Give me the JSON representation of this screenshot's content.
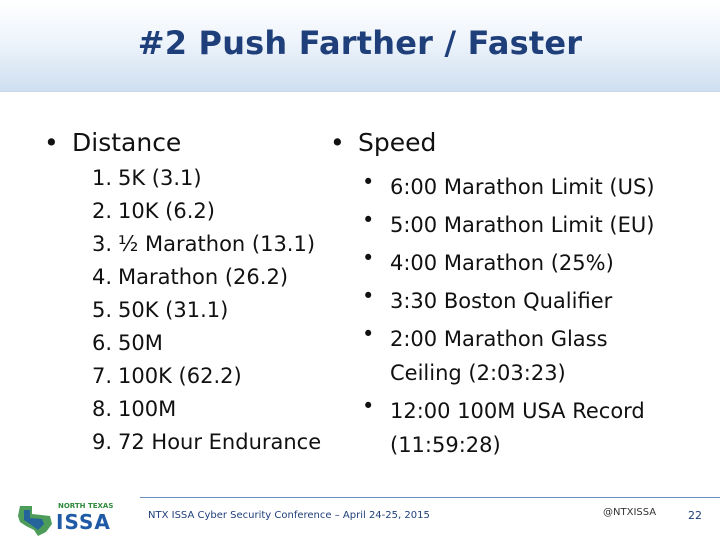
{
  "slide": {
    "title": "#2 Push Farther / Faster"
  },
  "distance": {
    "bullet": "•",
    "heading": "Distance",
    "items": [
      {
        "num": "1.",
        "text": "5K (3.1)"
      },
      {
        "num": "2.",
        "text": "10K (6.2)"
      },
      {
        "num": "3.",
        "text": "½ Marathon (13.1)"
      },
      {
        "num": "4.",
        "text": "Marathon (26.2)"
      },
      {
        "num": "5.",
        "text": "50K (31.1)"
      },
      {
        "num": "6.",
        "text": "50M"
      },
      {
        "num": "7.",
        "text": "100K (62.2)"
      },
      {
        "num": "8.",
        "text": "100M"
      },
      {
        "num": "9.",
        "text": "72 Hour Endurance"
      }
    ]
  },
  "speed": {
    "bullet": "•",
    "heading": "Speed",
    "items": [
      {
        "bullet": "•",
        "text": "6:00 Marathon Limit (US)"
      },
      {
        "bullet": "•",
        "text": "5:00 Marathon Limit (EU)"
      },
      {
        "bullet": "•",
        "text": "4:00 Marathon (25%)"
      },
      {
        "bullet": "•",
        "text": "3:30 Boston Qualifier"
      },
      {
        "bullet": "•",
        "text": "2:00 Marathon Glass Ceiling (2:03:23)"
      },
      {
        "bullet": "•",
        "text": "12:00 100M USA Record (11:59:28)"
      }
    ]
  },
  "footer": {
    "conference": "NTX ISSA Cyber Security Conference – April 24-25, 2015",
    "handle": "@NTXISSA",
    "page": "22",
    "logo_top": "NORTH TEXAS",
    "logo_main": "ISSA"
  },
  "colors": {
    "title": "#1f3f7a",
    "accent_blue": "#1f5aa6",
    "accent_green": "#2e8b3c"
  }
}
